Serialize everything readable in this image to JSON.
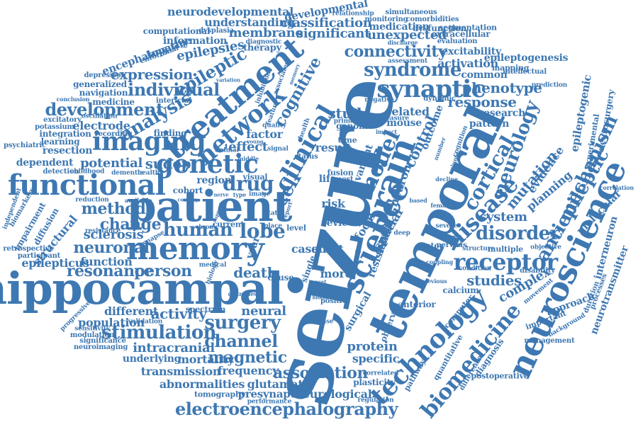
{
  "color": "#3e78b2",
  "words": [
    "seizure",
    "temporal",
    "hippocampal",
    "patient",
    "neuroscience",
    "memory",
    "brain",
    "science",
    "technology",
    "biomedicine",
    "functional",
    "electroencephalography",
    "treatment",
    "network",
    "clinical",
    "imaging",
    "disease",
    "receptor",
    "genetic",
    "cortical",
    "neurology",
    "mechanism",
    "antiepileptic",
    "synaptic",
    "syndrome",
    "connectivity",
    "analysis",
    "individual",
    "development",
    "human",
    "lobe",
    "disorder",
    "stimulation",
    "surgery",
    "channel",
    "magnetic",
    "association",
    "intracranial",
    "method",
    "change",
    "drug",
    "model",
    "person",
    "resonance",
    "neuronal",
    "sclerosis",
    "epileptic",
    "cognitive",
    "activity",
    "mutation",
    "system",
    "studies",
    "complex",
    "protein",
    "study",
    "response",
    "phenotype",
    "expression",
    "epilepsies",
    "membrane",
    "significant",
    "unexpected",
    "classification",
    "understanding",
    "neurodevelopmental",
    "developmental",
    "glutamate",
    "abnormalities",
    "transmission",
    "frequency",
    "mortality",
    "underlying",
    "population",
    "different",
    "function",
    "structural",
    "epilepticus",
    "sudep",
    "potential",
    "electrode",
    "effect",
    "result",
    "factor",
    "cell",
    "control",
    "spatial",
    "focal",
    "resistant",
    "evidence",
    "planning",
    "molecular",
    "epileptogenic",
    "interneuron",
    "neurotransmitter",
    "approach",
    "neurosurgery",
    "epileptogenesis",
    "excitability",
    "activation",
    "common",
    "research",
    "pattern",
    "related",
    "mouse",
    "neuron",
    "variant",
    "outcome",
    "genome",
    "related",
    "specific",
    "group",
    "plasticity",
    "neurological",
    "presynaptic",
    "tomography",
    "performance",
    "neuroimaging",
    "significance",
    "sensitivity",
    "validation",
    "modulation",
    "progressive",
    "spectrum",
    "neural",
    "death",
    "case",
    "adult",
    "review",
    "single",
    "more",
    "phase",
    "positive",
    "risk",
    "fusion",
    "life",
    "most",
    "region",
    "cohort",
    "image",
    "current",
    "visual",
    "place",
    "level",
    "resection",
    "integration",
    "learning",
    "potassium",
    "psychiatric",
    "excitatory",
    "oscillation",
    "medicine",
    "navigation",
    "generalized",
    "depression",
    "conclusion",
    "interictal",
    "finding",
    "recording",
    "detection",
    "dependent",
    "childhood",
    "dementia",
    "healthy",
    "retrospective",
    "participant",
    "impairment",
    "diffusion",
    "biomarkers",
    "independent",
    "reduction",
    "resistance",
    "available",
    "synapse",
    "encephalopathy",
    "entorhinal",
    "language",
    "computational",
    "dysplasia",
    "information",
    "diagnostic",
    "therapy",
    "medication",
    "segmentation",
    "extracellular",
    "evaluation",
    "mapping",
    "intellectual",
    "comorbidities",
    "dysfunction",
    "monitoring",
    "relationship",
    "simultaneous",
    "assessment",
    "prediction",
    "dynamic",
    "experimental",
    "correlation",
    "multiple",
    "objective",
    "structure",
    "motor",
    "nervous",
    "condition",
    "disability",
    "duration",
    "processes",
    "important",
    "background",
    "management",
    "postoperative",
    "difference",
    "diagnosis",
    "quantitative",
    "pathway",
    "computer",
    "calcium",
    "anterior",
    "deep",
    "severe",
    "previous",
    "coupling",
    "observed",
    "surgical",
    "correlated",
    "regulation",
    "increase",
    "primary",
    "time",
    "health",
    "state",
    "medical",
    "biology",
    "cause",
    "quality",
    "animal",
    "signal",
    "status",
    "feature",
    "associated",
    "variation",
    "inhibition",
    "negative",
    "female",
    "based",
    "decline",
    "volume",
    "cognition",
    "number",
    "movement",
    "discharge",
    "follow",
    "impact",
    "measure",
    "middle",
    "young",
    "chronic",
    "support",
    "report",
    "year",
    "countries",
    "minimal",
    "ictal",
    "visual",
    "subject",
    "blood",
    "onset",
    "presurgical",
    "pathology",
    "memory",
    "scale",
    "present",
    "country",
    "gabor",
    "nerve",
    "type"
  ]
}
